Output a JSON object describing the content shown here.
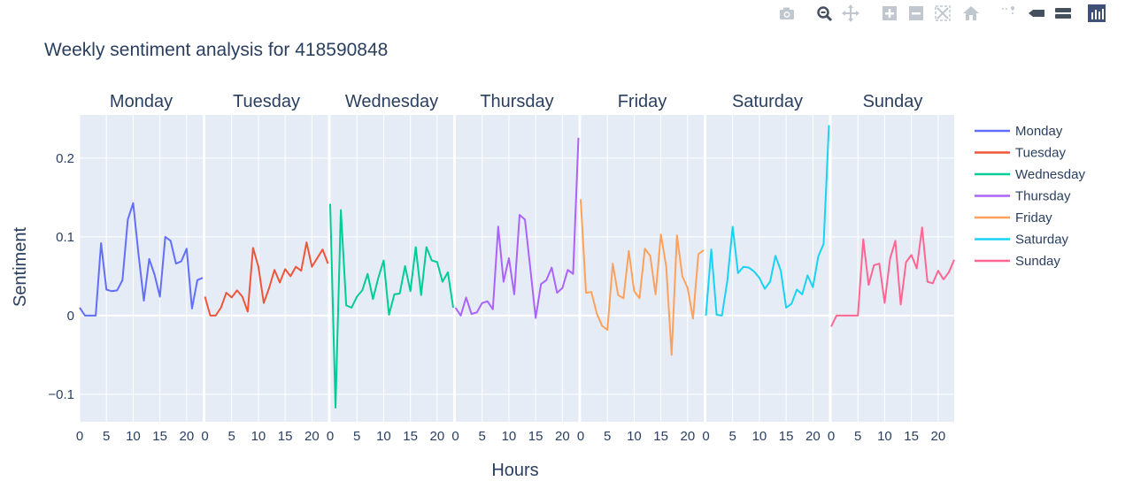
{
  "modebar": {
    "buttons": [
      {
        "name": "camera-icon"
      },
      {
        "name": "zoom-icon"
      },
      {
        "name": "pan-icon"
      },
      {
        "name": "zoom-in-icon"
      },
      {
        "name": "zoom-out-icon"
      },
      {
        "name": "autoscale-icon"
      },
      {
        "name": "home-icon"
      },
      {
        "name": "spike-lines-icon"
      },
      {
        "name": "hover-closest-icon"
      },
      {
        "name": "hover-compare-icon"
      },
      {
        "name": "plotly-logo-icon"
      }
    ]
  },
  "chart_data": {
    "type": "line",
    "title": "Weekly sentiment analysis for 418590848",
    "xlabel": "Hours",
    "ylabel": "Sentiment",
    "xlim": [
      0,
      23
    ],
    "ylim": [
      -0.135,
      0.255
    ],
    "x_ticks": [
      0,
      5,
      10,
      15,
      20
    ],
    "x_tick_labels": [
      "0",
      "5",
      "10",
      "15",
      "20"
    ],
    "y_ticks": [
      -0.1,
      0,
      0.1,
      0.2
    ],
    "y_tick_labels": [
      "−0.1",
      "0",
      "0.1",
      "0.2"
    ],
    "grid": true,
    "legend_position": "right",
    "facets": [
      "Monday",
      "Tuesday",
      "Wednesday",
      "Thursday",
      "Friday",
      "Saturday",
      "Sunday"
    ],
    "x": [
      0,
      1,
      2,
      3,
      4,
      5,
      6,
      7,
      8,
      9,
      10,
      11,
      12,
      13,
      14,
      15,
      16,
      17,
      18,
      19,
      20,
      21,
      22,
      23
    ],
    "series": [
      {
        "name": "Monday",
        "color": "#636efa",
        "values": [
          0.01,
          0.0,
          0.0,
          0.0,
          0.092,
          0.033,
          0.031,
          0.032,
          0.045,
          0.122,
          0.143,
          0.078,
          0.019,
          0.072,
          0.052,
          0.024,
          0.1,
          0.095,
          0.066,
          0.069,
          0.085,
          0.009,
          0.045,
          0.048
        ]
      },
      {
        "name": "Tuesday",
        "color": "#EF553B",
        "values": [
          0.024,
          0.0,
          0.0,
          0.01,
          0.029,
          0.023,
          0.032,
          0.024,
          0.005,
          0.086,
          0.062,
          0.016,
          0.035,
          0.058,
          0.042,
          0.059,
          0.05,
          0.062,
          0.057,
          0.093,
          0.062,
          0.073,
          0.084,
          0.066
        ]
      },
      {
        "name": "Wednesday",
        "color": "#00cc96",
        "values": [
          0.142,
          -0.117,
          0.134,
          0.013,
          0.01,
          0.024,
          0.032,
          0.053,
          0.021,
          0.048,
          0.07,
          0.001,
          0.027,
          0.028,
          0.063,
          0.031,
          0.087,
          0.026,
          0.087,
          0.07,
          0.068,
          0.043,
          0.055,
          0.01
        ]
      },
      {
        "name": "Thursday",
        "color": "#ab63fa",
        "values": [
          0.01,
          0.0,
          0.023,
          0.002,
          0.004,
          0.016,
          0.018,
          0.008,
          0.113,
          0.043,
          0.073,
          0.027,
          0.128,
          0.122,
          0.06,
          -0.003,
          0.04,
          0.045,
          0.061,
          0.029,
          0.035,
          0.058,
          0.053,
          0.226
        ]
      },
      {
        "name": "Friday",
        "color": "#FFA15A",
        "values": [
          0.148,
          0.029,
          0.03,
          0.003,
          -0.013,
          -0.018,
          0.066,
          0.026,
          0.022,
          0.082,
          0.031,
          0.022,
          0.085,
          0.076,
          0.027,
          0.103,
          0.062,
          -0.05,
          0.102,
          0.05,
          0.035,
          -0.004,
          0.078,
          0.083
        ]
      },
      {
        "name": "Saturday",
        "color": "#19d3f3",
        "values": [
          0.0,
          0.084,
          0.001,
          0.0,
          0.044,
          0.113,
          0.054,
          0.062,
          0.061,
          0.056,
          0.048,
          0.034,
          0.043,
          0.076,
          0.057,
          0.01,
          0.015,
          0.033,
          0.027,
          0.051,
          0.036,
          0.075,
          0.091,
          0.242
        ]
      },
      {
        "name": "Sunday",
        "color": "#FF6692",
        "values": [
          -0.014,
          0.0,
          0.0,
          0.0,
          0.0,
          0.0,
          0.097,
          0.039,
          0.064,
          0.066,
          0.016,
          0.072,
          0.095,
          0.014,
          0.068,
          0.077,
          0.06,
          0.112,
          0.043,
          0.041,
          0.057,
          0.046,
          0.055,
          0.071
        ]
      }
    ]
  }
}
